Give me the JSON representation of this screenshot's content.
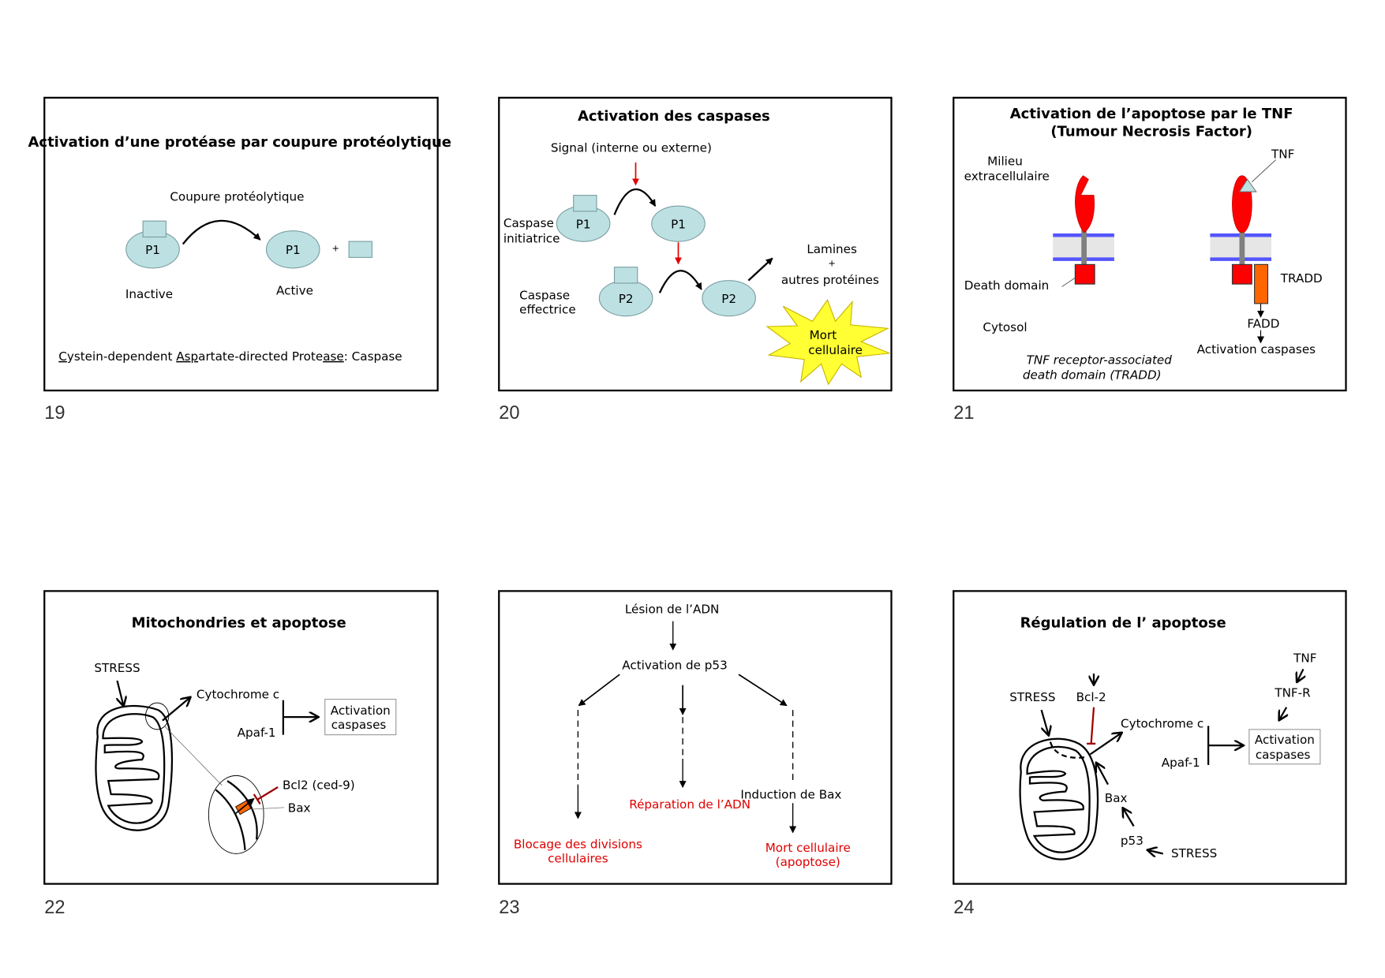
{
  "slides": [
    {
      "number": "19",
      "title": "Activation d’une protéase par coupure protéolytique",
      "cut_label": "Coupure protéolytique",
      "protein": "P1",
      "plus": "+",
      "inactive": "Inactive",
      "active": "Active",
      "footer": {
        "p1": "C",
        "p2": "ystein-dependent ",
        "p3": "Asp",
        "p4": "artate-directed Prote",
        "p5": "ase",
        "p6": ": Caspase"
      }
    },
    {
      "number": "20",
      "title": "Activation des caspases",
      "signal": "Signal (interne ou externe)",
      "initiator_1": "Caspase",
      "initiator_2": "initiatrice",
      "effector_1": "Caspase",
      "effector_2": "effectrice",
      "p1": "P1",
      "p2": "P2",
      "targets_1": "Lamines",
      "targets_2": "+",
      "targets_3": "autres protéines",
      "death_1": "Mort",
      "death_2": "cellulaire"
    },
    {
      "number": "21",
      "title_1": "Activation de l’apoptose par le TNF",
      "title_2": "(Tumour Necrosis Factor)",
      "extra_1": "Milieu",
      "extra_2": "extracellulaire",
      "tnf": "TNF",
      "death_domain": "Death domain",
      "cytosol": "Cytosol",
      "tradd": "TRADD",
      "fadd": "FADD",
      "activation": "Activation caspases",
      "tradd_def_1": "TNF receptor-associated",
      "tradd_def_2": "death domain (TRADD)"
    },
    {
      "number": "22",
      "title": "Mitochondries et apoptose",
      "stress": "STRESS",
      "cyto": "Cytochrome c",
      "apaf": "Apaf-1",
      "act_1": "Activation",
      "act_2": "caspases",
      "bcl2": "Bcl2 (ced-9)",
      "bax": "Bax"
    },
    {
      "number": "23",
      "lesion": "Lésion de l’ADN",
      "p53": "Activation de p53",
      "repair": "Réparation de l’ADN",
      "bax": "Induction de Bax",
      "block_1": "Blocage des divisions",
      "block_2": "cellulaires",
      "death_1": "Mort cellulaire",
      "death_2": "(apoptose)"
    },
    {
      "number": "24",
      "title": "Régulation de l’ apoptose",
      "tnf": "TNF",
      "tnfr": "TNF-R",
      "act_1": "Activation",
      "act_2": "caspases",
      "stress": "STRESS",
      "bcl2": "Bcl-2",
      "cyto": "Cytochrome c",
      "apaf": "Apaf-1",
      "bax": "Bax",
      "p53": "p53",
      "stress2": "STRESS"
    }
  ],
  "colors": {
    "protein": "#bde0e3",
    "inhibit": "#a00000",
    "signal_arrow": "#e00000",
    "receptor": "#ff0000",
    "membrane": "#5555ff",
    "tradd": "#ff6600",
    "burst": "#ffff33",
    "red_text": "#e00000"
  }
}
